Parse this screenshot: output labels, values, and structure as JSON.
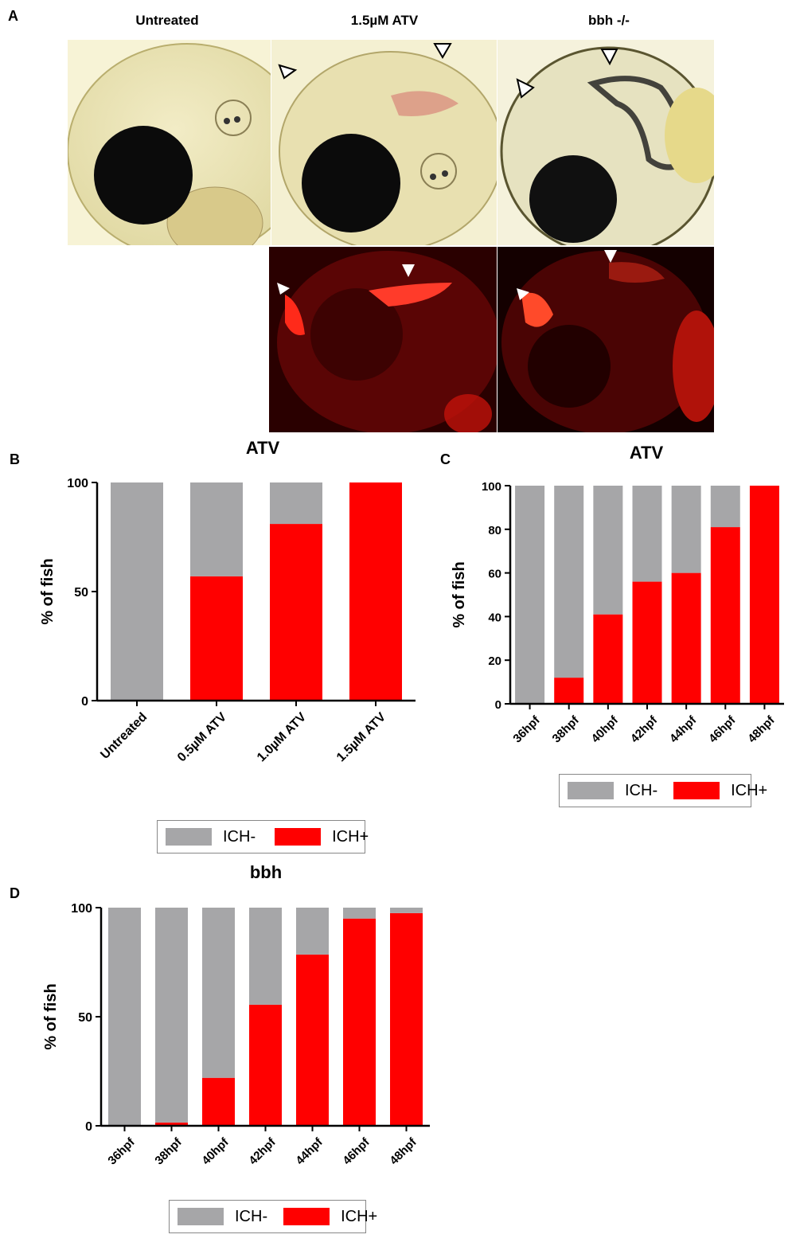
{
  "panel_a": {
    "letter": "A",
    "titles": [
      "Untreated",
      "1.5µM ATV",
      "bbh -/-"
    ]
  },
  "colors": {
    "ich_minus": "#a6a6a8",
    "ich_plus": "#ff0000"
  },
  "chart_data": [
    {
      "panel": "B",
      "type": "bar",
      "title": "ATV",
      "ylabel": "% of fish",
      "xlabel": "",
      "ylim": [
        0,
        100
      ],
      "yticks": [
        0,
        50,
        100
      ],
      "categories": [
        "Untreated",
        "0.5µM ATV",
        "1.0µM ATV",
        "1.5µM ATV"
      ],
      "series": [
        {
          "name": "ICH-",
          "values": [
            100,
            43,
            19,
            0
          ]
        },
        {
          "name": "ICH+",
          "values": [
            0,
            57,
            81,
            100
          ]
        }
      ],
      "legend": "bottom",
      "grid": false
    },
    {
      "panel": "C",
      "type": "bar",
      "title": "ATV",
      "ylabel": "% of fish",
      "xlabel": "",
      "ylim": [
        0,
        100
      ],
      "yticks": [
        0,
        20,
        40,
        60,
        80,
        100
      ],
      "categories": [
        "36hpf",
        "38hpf",
        "40hpf",
        "42hpf",
        "44hpf",
        "46hpf",
        "48hpf"
      ],
      "series": [
        {
          "name": "ICH-",
          "values": [
            100,
            88,
            59,
            44,
            40,
            19,
            0
          ]
        },
        {
          "name": "ICH+",
          "values": [
            0,
            12,
            41,
            56,
            60,
            81,
            100
          ]
        }
      ],
      "legend": "bottom",
      "grid": false
    },
    {
      "panel": "D",
      "type": "bar",
      "title": "bbh",
      "ylabel": "% of fish",
      "xlabel": "",
      "ylim": [
        0,
        100
      ],
      "yticks": [
        0,
        50,
        100
      ],
      "categories": [
        "36hpf",
        "38hpf",
        "40hpf",
        "42hpf",
        "44hpf",
        "46hpf",
        "48hpf"
      ],
      "series": [
        {
          "name": "ICH-",
          "values": [
            100,
            98.5,
            78,
            44.5,
            21.5,
            5,
            2.5
          ]
        },
        {
          "name": "ICH+",
          "values": [
            0,
            1.5,
            22,
            55.5,
            78.5,
            95,
            97.5
          ]
        }
      ],
      "legend": "bottom",
      "grid": false
    }
  ]
}
